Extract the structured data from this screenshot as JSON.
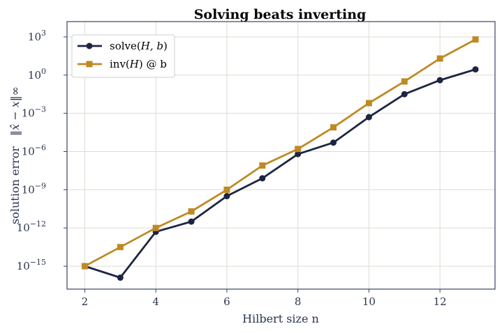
{
  "chart_data": {
    "type": "line",
    "title": "Solving beats inverting",
    "xlabel": "Hilbert size  n",
    "ylabel_text": "solution error",
    "ylabel_math": "‖x̂ − x‖∞",
    "x": [
      2,
      3,
      4,
      5,
      6,
      7,
      8,
      9,
      10,
      11,
      12,
      13
    ],
    "xlim": [
      1.5,
      13.55
    ],
    "xticks": [
      2,
      4,
      6,
      8,
      10,
      12
    ],
    "yscale": "log",
    "ylim_exp": [
      -16.8,
      4.2
    ],
    "ytick_exps": [
      3,
      0,
      -3,
      -6,
      -9,
      -12,
      -15
    ],
    "grid": true,
    "legend_position": "top-left",
    "series": [
      {
        "name": "solve(H, b)",
        "name_main": "solve(",
        "name_math": "H, b",
        "name_end": ")",
        "color": "#1c2541",
        "marker": "circle",
        "log10_values": [
          -15.0,
          -15.9,
          -12.3,
          -11.5,
          -9.5,
          -8.1,
          -6.2,
          -5.3,
          -3.3,
          -1.5,
          -0.4,
          0.45
        ]
      },
      {
        "name": "inv(H) @ b",
        "name_main": "inv(",
        "name_math": "H",
        "name_end": ") @ b",
        "color": "#bf8a23",
        "marker": "square",
        "log10_values": [
          -15.0,
          -13.5,
          -12.0,
          -10.7,
          -9.0,
          -7.1,
          -5.8,
          -4.1,
          -2.2,
          -0.5,
          1.3,
          2.8
        ]
      }
    ]
  }
}
